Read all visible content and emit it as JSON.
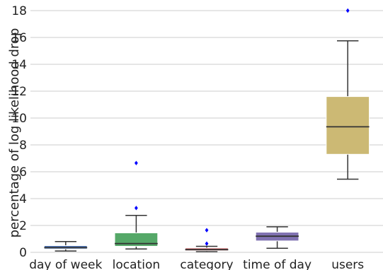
{
  "chart_data": {
    "type": "box",
    "title": "",
    "xlabel": "",
    "ylabel": "percentage of log likelihood drop",
    "ylim": [
      0,
      18
    ],
    "yticks": [
      0,
      2,
      4,
      6,
      8,
      10,
      12,
      14,
      16,
      18
    ],
    "grid": true,
    "outlier_color": "#0000ff",
    "categories": [
      "day of week",
      "location",
      "category",
      "time of day",
      "users"
    ],
    "boxes": [
      {
        "category": "day of week",
        "color": "#4c72b0",
        "whisker_low": 0.1,
        "q1": 0.25,
        "median": 0.35,
        "q3": 0.5,
        "whisker_high": 0.8,
        "outliers": []
      },
      {
        "category": "location",
        "color": "#55a868",
        "whisker_low": 0.25,
        "q1": 0.45,
        "median": 0.65,
        "q3": 1.45,
        "whisker_high": 2.75,
        "outliers": [
          3.3,
          6.65
        ]
      },
      {
        "category": "category",
        "color": "#c44e52",
        "whisker_low": 0.05,
        "q1": 0.12,
        "median": 0.2,
        "q3": 0.32,
        "whisker_high": 0.45,
        "outliers": [
          0.65,
          1.65
        ]
      },
      {
        "category": "time of day",
        "color": "#8172b2",
        "whisker_low": 0.3,
        "q1": 0.85,
        "median": 1.2,
        "q3": 1.5,
        "whisker_high": 1.9,
        "outliers": []
      },
      {
        "category": "users",
        "color": "#ccb974",
        "whisker_low": 5.45,
        "q1": 7.3,
        "median": 9.35,
        "q3": 11.6,
        "whisker_high": 15.75,
        "outliers": [
          18.0
        ]
      }
    ]
  }
}
